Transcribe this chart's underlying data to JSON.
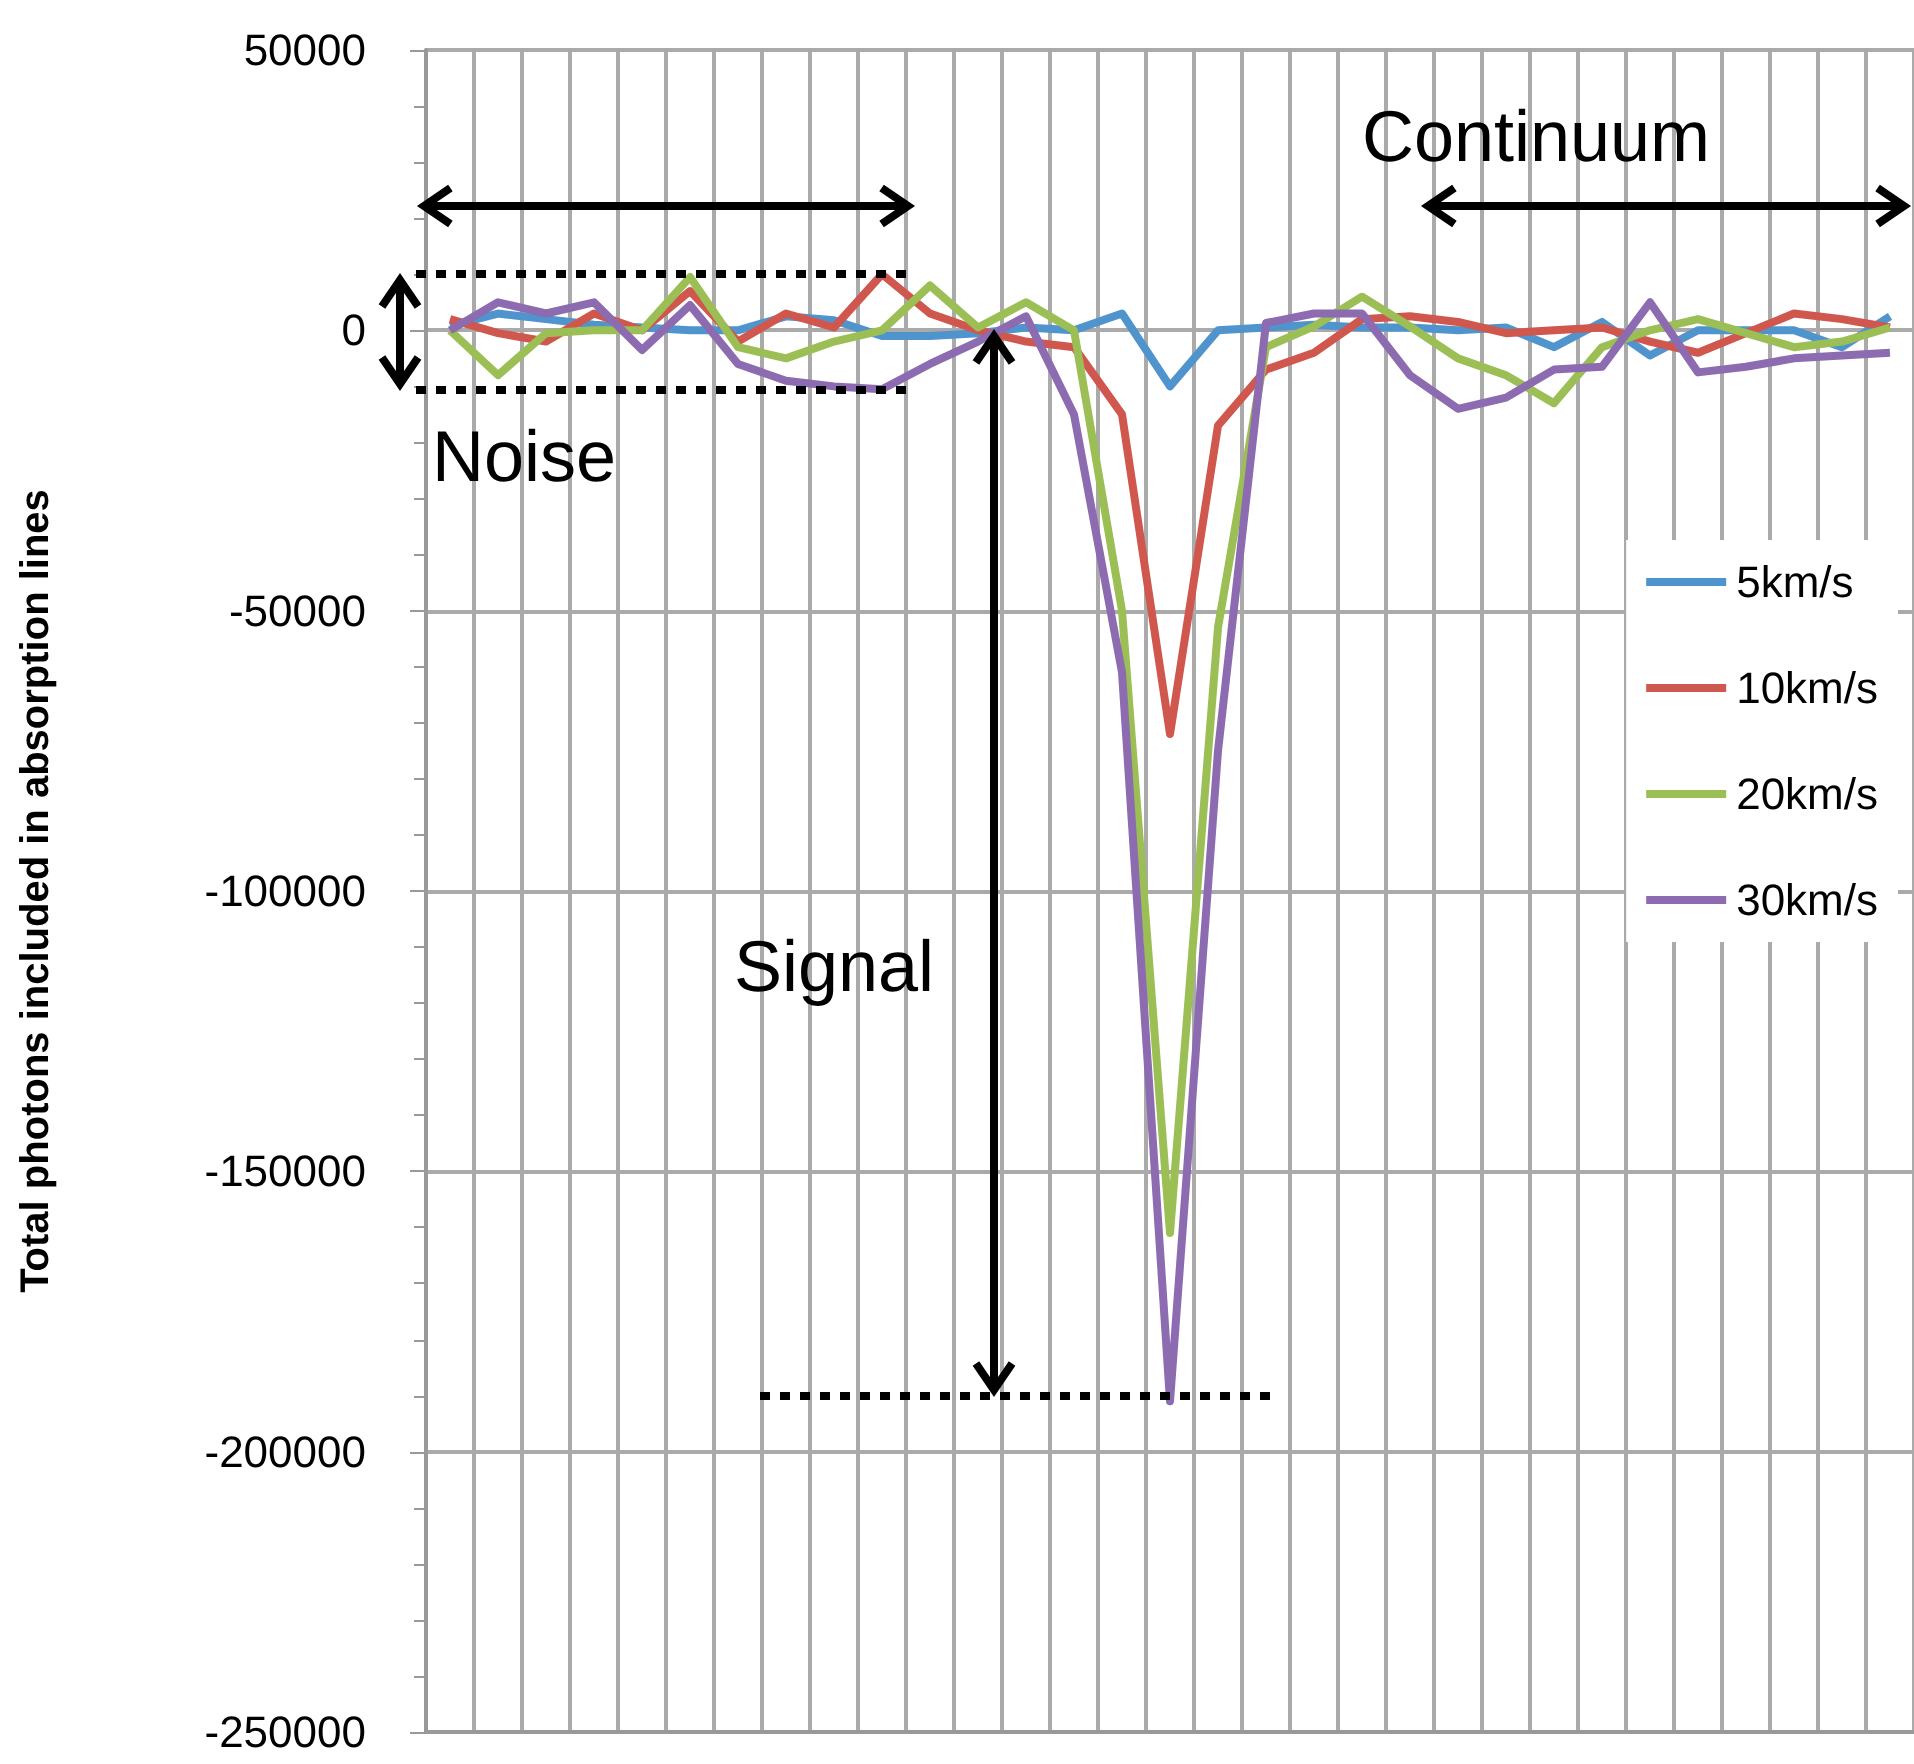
{
  "chart_data": {
    "type": "line",
    "ylabel": "Total photons included in absorption lines",
    "categories": [
      null,
      null,
      null,
      null,
      null,
      null,
      null,
      null,
      null,
      null,
      null,
      null,
      null,
      null,
      null,
      null,
      null,
      null,
      null,
      null,
      null,
      null,
      null,
      null,
      null,
      null,
      null,
      null,
      null,
      null,
      null
    ],
    "series": [
      {
        "name": "5km/s",
        "color": "#4f94cd",
        "values": [
          800,
          3000,
          2000,
          1000,
          500,
          0,
          0,
          2500,
          1800,
          -1000,
          -1000,
          -500,
          500,
          0,
          3000,
          -10000,
          0,
          500,
          1000,
          500,
          500,
          0,
          500,
          -3000,
          1500,
          -4500,
          0,
          0,
          0,
          -3000,
          2500
        ]
      },
      {
        "name": "10km/s",
        "color": "#d0574d",
        "values": [
          2000,
          -500,
          -2000,
          3000,
          0,
          7000,
          -2000,
          3000,
          500,
          10000,
          3000,
          0,
          -2000,
          -3000,
          -15000,
          -72000,
          -17000,
          -7000,
          -4000,
          2000,
          2500,
          1500,
          -500,
          0,
          500,
          -2000,
          -4000,
          -500,
          3000,
          2000,
          500
        ]
      },
      {
        "name": "20km/s",
        "color": "#9bbf55",
        "values": [
          0,
          -8000,
          -500,
          0,
          0,
          9500,
          -3000,
          -5000,
          -2000,
          0,
          8000,
          500,
          5000,
          0,
          -50000,
          -161000,
          -53000,
          -3000,
          700,
          6000,
          700,
          -5000,
          -8000,
          -13000,
          -3000,
          0,
          2000,
          -500,
          -3000,
          -2000,
          500
        ]
      },
      {
        "name": "30km/s",
        "color": "#8c6bb1",
        "values": [
          0,
          5000,
          3000,
          5000,
          -3500,
          4500,
          -6000,
          -9000,
          -10000,
          -10500,
          -6000,
          -2000,
          2500,
          -15000,
          -61000,
          -191000,
          -75000,
          1300,
          3000,
          3000,
          -8000,
          -14000,
          -12000,
          -7000,
          -6500,
          5000,
          -7500,
          -6500,
          -5000,
          -4500,
          -4000
        ]
      }
    ],
    "ylim": [
      -250000,
      50000
    ],
    "yticks": [
      -250000,
      -200000,
      -150000,
      -100000,
      -50000,
      0,
      50000
    ],
    "grid": true,
    "legend": "right",
    "marker": "none",
    "line_style": "solid",
    "annotations": [
      "Continuum",
      "Noise",
      "Signal"
    ]
  }
}
